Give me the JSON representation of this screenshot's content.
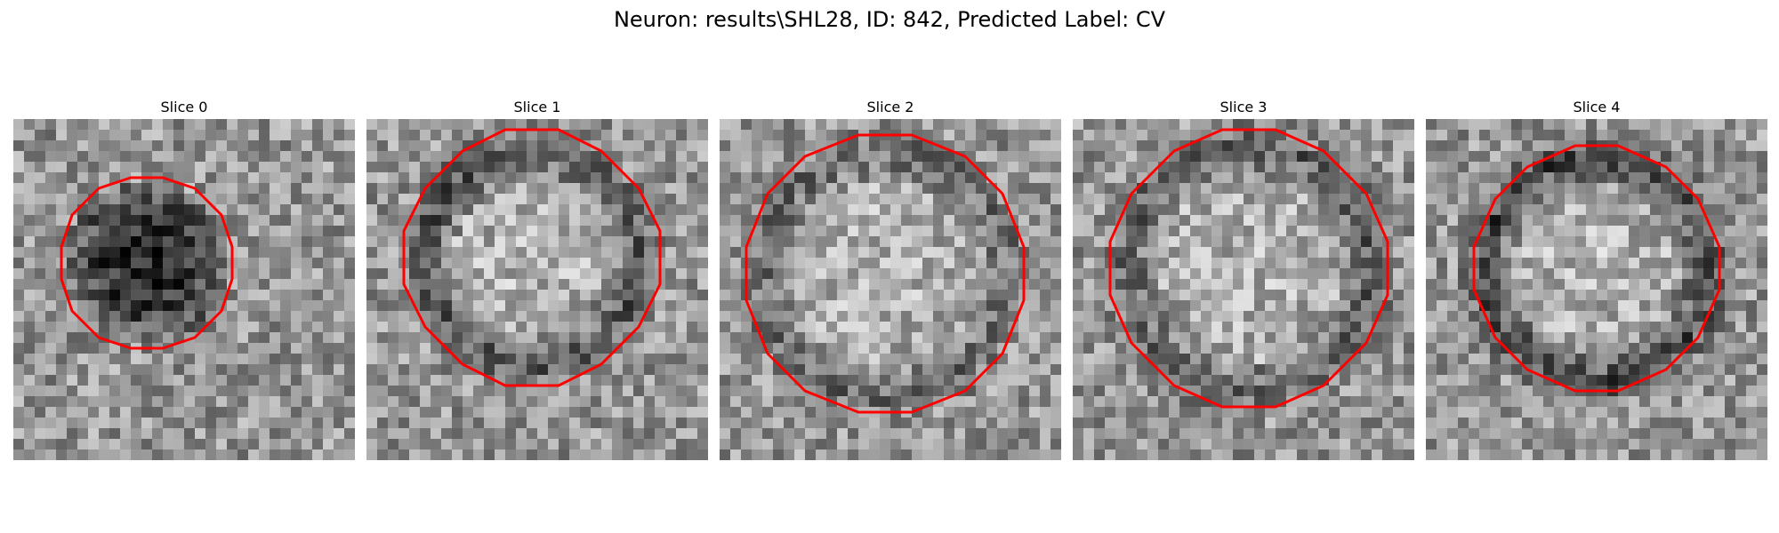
{
  "figure": {
    "title": "Neuron: results\\SHL28, ID: 842, Predicted Label: CV"
  },
  "colors": {
    "contour": "#ff0000",
    "background": "#ffffff"
  },
  "slices": [
    {
      "label": "Slice 0",
      "dark_core": true
    },
    {
      "label": "Slice 1",
      "dark_core": false
    },
    {
      "label": "Slice 2",
      "dark_core": false
    },
    {
      "label": "Slice 3",
      "dark_core": false
    },
    {
      "label": "Slice 4",
      "dark_core": false
    }
  ]
}
